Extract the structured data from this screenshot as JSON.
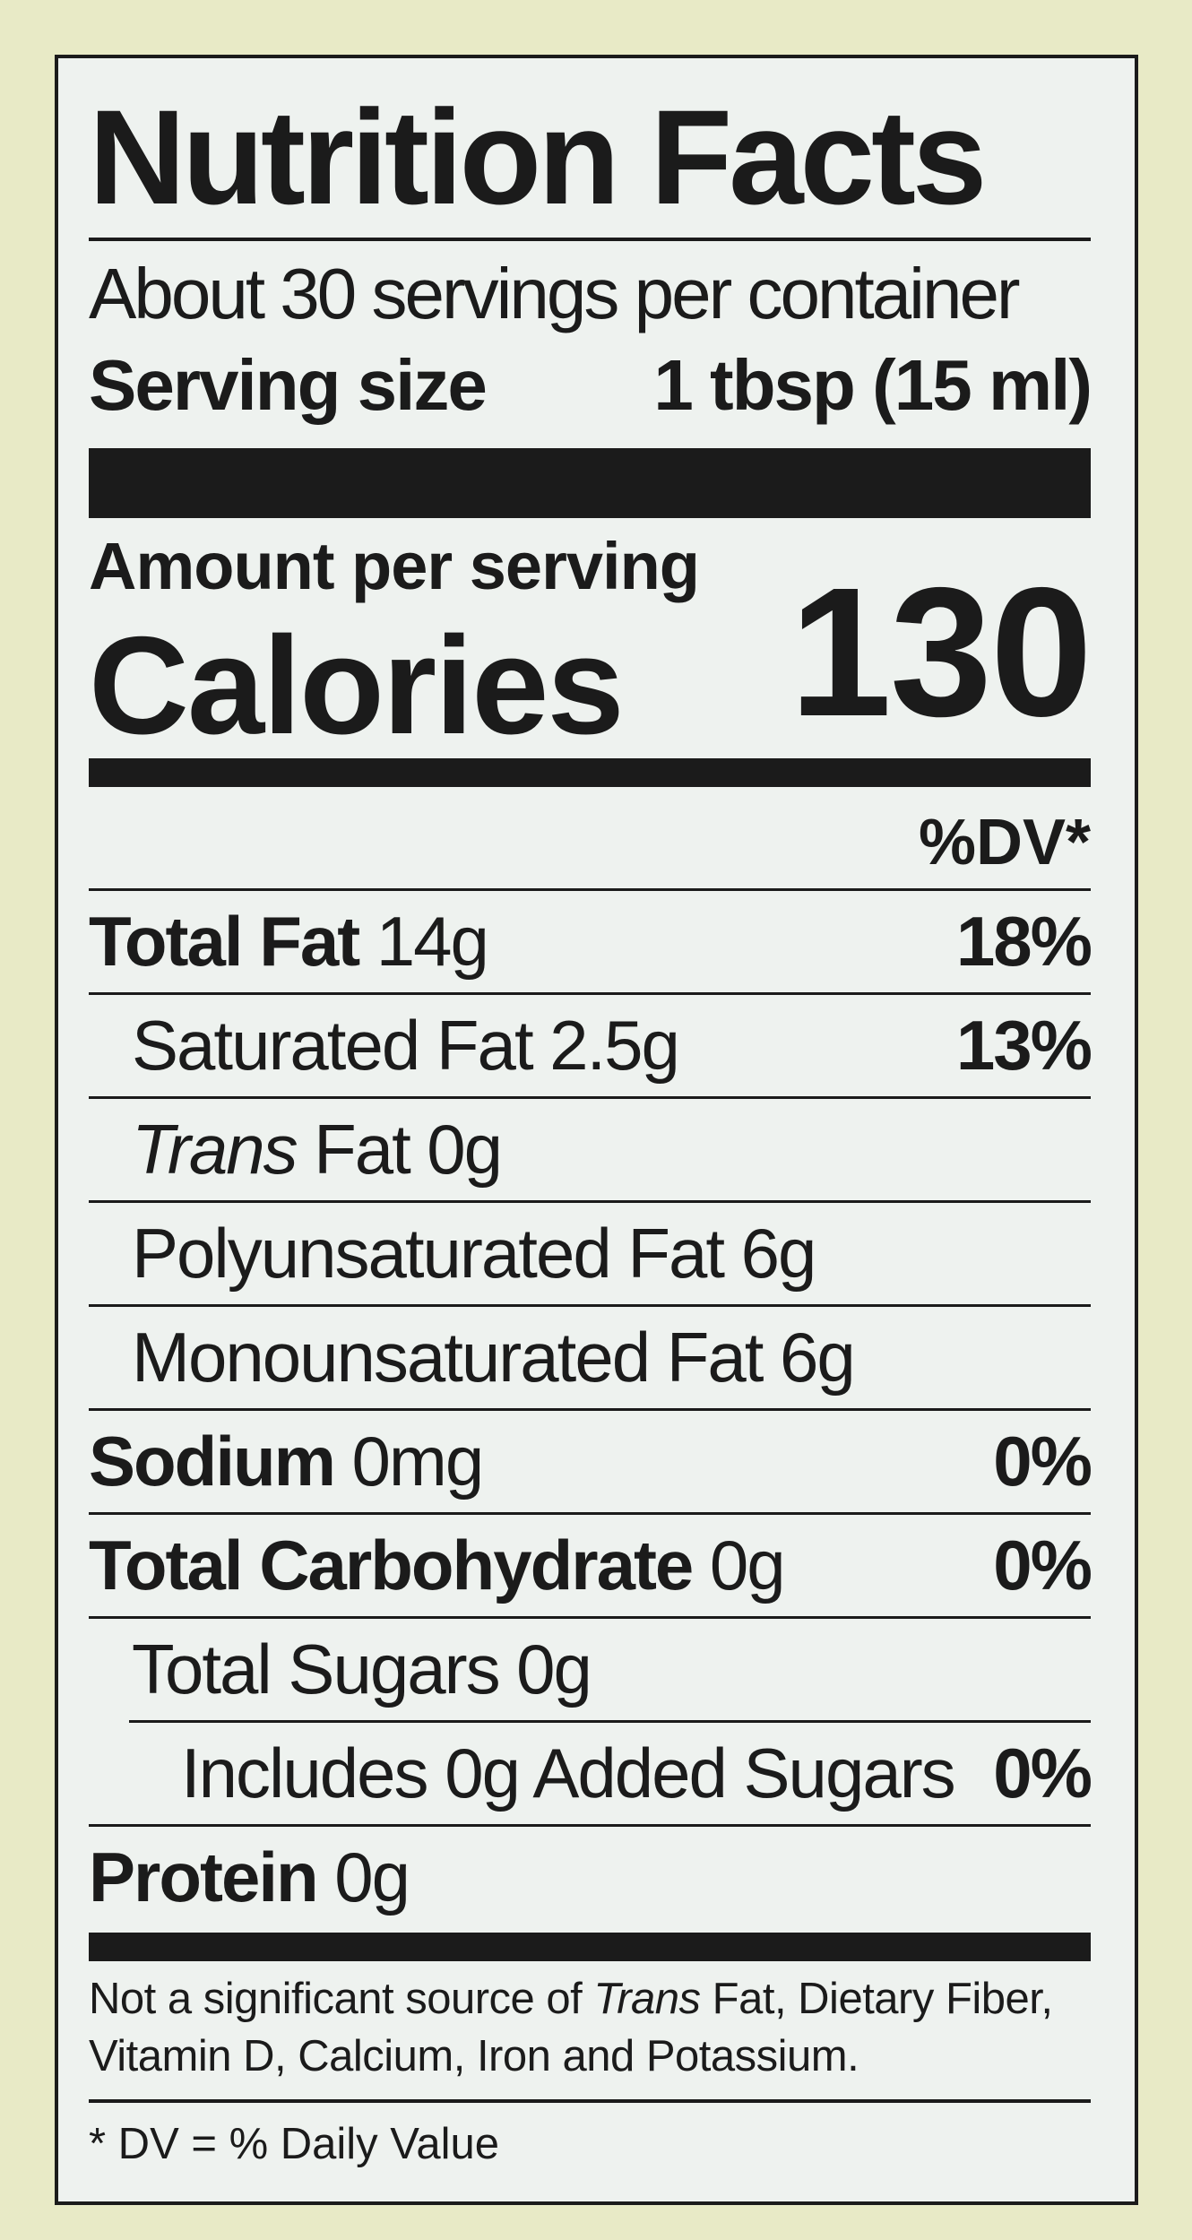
{
  "title": "Nutrition Facts",
  "servings": "About 30 servings per container",
  "serving_size": {
    "label": "Serving size",
    "value": "1 tbsp (15 ml)"
  },
  "amount_per_serving": "Amount per serving",
  "calories": {
    "label": "Calories",
    "value": "130"
  },
  "dv_header": "%DV*",
  "nutrients": [
    {
      "name": "Total Fat",
      "amount": "14g",
      "dv": "18%"
    },
    {
      "name": "Saturated Fat",
      "amount": "2.5g",
      "dv": "13%"
    },
    {
      "name_italic": "Trans",
      "name": "Fat",
      "amount": "0g"
    },
    {
      "name": "Polyunsaturated Fat",
      "amount": "6g"
    },
    {
      "name": "Monounsaturated Fat",
      "amount": "6g"
    },
    {
      "name": "Sodium",
      "amount": "0mg",
      "dv": "0%"
    },
    {
      "name": "Total Carbohydrate",
      "amount": "0g",
      "dv": "0%"
    },
    {
      "name": "Total Sugars",
      "amount": "0g"
    },
    {
      "name": "Includes 0g Added Sugars",
      "dv": "0%"
    },
    {
      "name": "Protein",
      "amount": "0g"
    }
  ],
  "footnote": [
    "Not a significant source of ",
    "Trans",
    " Fat, Dietary Fiber, Vitamin D, Calcium, Iron and Potassium."
  ],
  "dv_note": "* DV = % Daily Value"
}
